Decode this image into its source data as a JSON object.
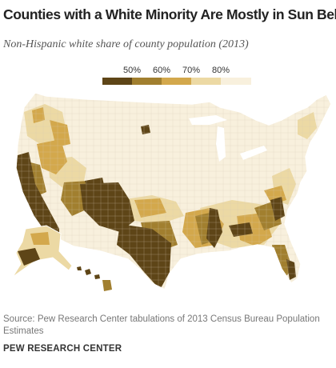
{
  "title": "Counties with a White Minority Are Mostly in Sun Belt",
  "subtitle": "Non-Hispanic white share of county population (2013)",
  "legend": {
    "labels": [
      "50%",
      "60%",
      "70%",
      "80%"
    ],
    "colors": [
      "#5e4517",
      "#a17f2f",
      "#d3a84c",
      "#ecd9a4",
      "#f8f0dd"
    ]
  },
  "colors": {
    "outline": "#ffffff",
    "county_lines": "#d8ccb4"
  },
  "source": "Source: Pew Research Center tabulations of 2013 Census Bureau Population Estimates",
  "brand": "PEW RESEARCH CENTER"
}
